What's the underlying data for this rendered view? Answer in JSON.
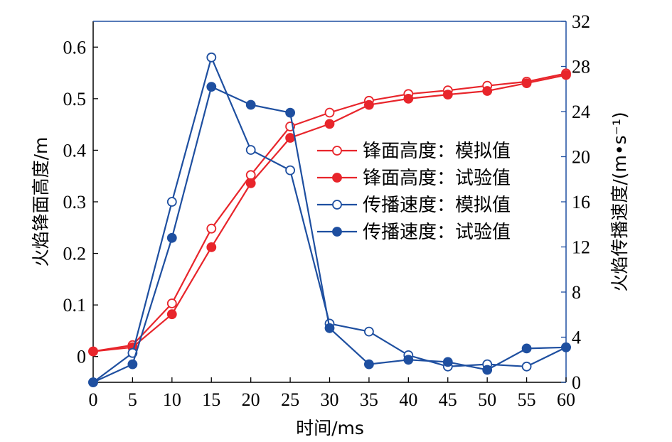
{
  "chart_data": {
    "type": "line",
    "xlabel": "时间/ms",
    "ylabel_left": "火焰锋面高度/m",
    "ylabel_right": "火焰传播速度/(m•s⁻¹)",
    "x": [
      0,
      5,
      10,
      15,
      20,
      25,
      30,
      35,
      40,
      45,
      50,
      55,
      60
    ],
    "x_ticks": [
      "0",
      "5",
      "10",
      "15",
      "20",
      "25",
      "30",
      "35",
      "40",
      "45",
      "50",
      "55",
      "60"
    ],
    "xlim": [
      0,
      60
    ],
    "ylim_left": [
      -0.05,
      0.65
    ],
    "yticks_left": [
      "0",
      "0.1",
      "0.2",
      "0.3",
      "0.4",
      "0.5",
      "0.6"
    ],
    "ylim_right": [
      0,
      32
    ],
    "yticks_right": [
      "0",
      "4",
      "8",
      "12",
      "16",
      "20",
      "24",
      "28",
      "32"
    ],
    "legend_position": "right-middle",
    "series": [
      {
        "name": "锋面高度：模拟值",
        "axis": "left",
        "marker": "open",
        "color": "#e8252b",
        "values": [
          0.01,
          0.022,
          0.103,
          0.248,
          0.352,
          0.446,
          0.473,
          0.496,
          0.509,
          0.516,
          0.525,
          0.533,
          0.549
        ]
      },
      {
        "name": "锋面高度：试验值",
        "axis": "left",
        "marker": "filled",
        "color": "#e8252b",
        "values": [
          0.01,
          0.018,
          0.082,
          0.212,
          0.336,
          0.424,
          0.451,
          0.488,
          0.5,
          0.508,
          0.515,
          0.53,
          0.546
        ]
      },
      {
        "name": "传播速度：模拟值",
        "axis": "right",
        "marker": "open",
        "color": "#1e4fa0",
        "values": [
          0.0,
          2.6,
          16.0,
          28.8,
          20.6,
          18.8,
          5.2,
          4.5,
          2.4,
          1.4,
          1.6,
          1.4,
          3.1
        ]
      },
      {
        "name": "传播速度：试验值",
        "axis": "right",
        "marker": "filled",
        "color": "#1e4fa0",
        "values": [
          0.0,
          1.6,
          12.8,
          26.2,
          24.6,
          23.9,
          4.8,
          1.6,
          2.0,
          1.8,
          1.1,
          3.0,
          3.1
        ]
      }
    ]
  }
}
